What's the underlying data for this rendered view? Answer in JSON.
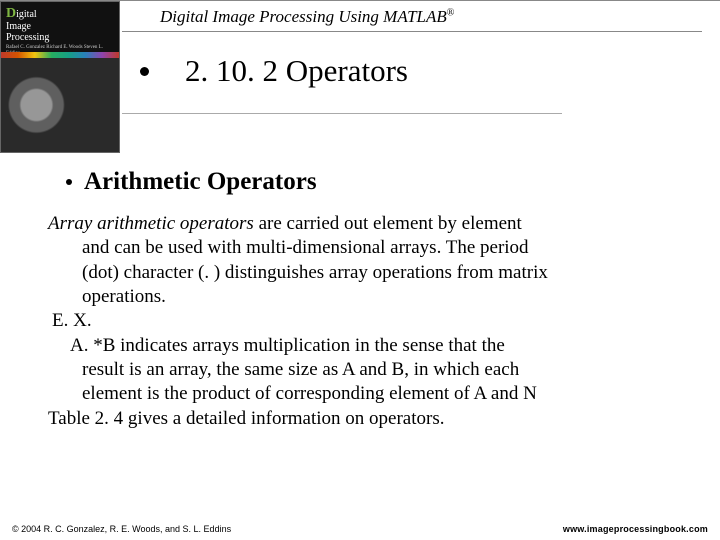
{
  "header": {
    "book_title_html": "Digital Image Processing Using MATLAB",
    "registered": "®"
  },
  "cover": {
    "line1_prefix": "D",
    "line1_rest": "igital",
    "line2": "Image",
    "line3": "Processing",
    "authors": "Rafael C. Gonzalez\nRichard E. Woods\nSteven L. Eddins"
  },
  "slide": {
    "title": "2. 10. 2 Operators",
    "sub_heading": "Arithmetic Operators",
    "p1_em": "Array arithmetic operators",
    "p1_rest_l1": " are carried out element by element",
    "p1_l2": "and can be used with multi-dimensional arrays. The period",
    "p1_l3": "(dot) character (. ) distinguishes array operations from matrix",
    "p1_l4": "operations.",
    "ex_label": "E. X.",
    "ex_l1": "A. *B indicates arrays multiplication in the sense that the",
    "ex_l2": "result is an array, the same size as A and B, in which each",
    "ex_l3": "element is the product of corresponding element of A and N",
    "tail": "Table 2. 4 gives a detailed information on operators."
  },
  "footer": {
    "left": "© 2004 R. C. Gonzalez, R. E. Woods, and S. L. Eddins",
    "right": "www.imageprocessingbook.com"
  }
}
